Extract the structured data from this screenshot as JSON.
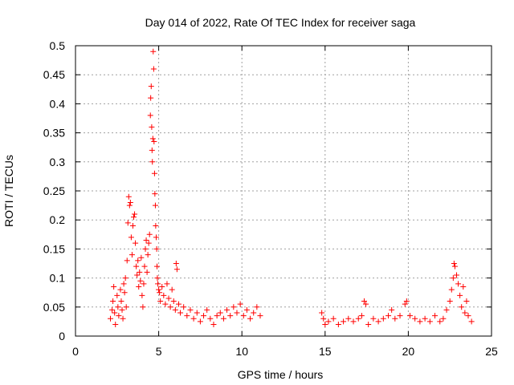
{
  "colors": {
    "series": "#ff0000",
    "grid": "#a0a0a0",
    "axis": "#000000",
    "background": "#ffffff"
  },
  "chart_data": {
    "type": "scatter",
    "title": "Day 014 of 2022, Rate Of TEC Index for receiver saga",
    "xlabel": "GPS time / hours",
    "ylabel": "ROTI / TECUs",
    "xlim": [
      0,
      25
    ],
    "ylim": [
      0,
      0.5
    ],
    "xticks": [
      0,
      5,
      10,
      15,
      20,
      25
    ],
    "xtick_labels": [
      "0",
      "5",
      "10",
      "15",
      "20",
      "25"
    ],
    "yticks": [
      0,
      0.05,
      0.1,
      0.15,
      0.2,
      0.25,
      0.3,
      0.35,
      0.4,
      0.45,
      0.5
    ],
    "ytick_labels": [
      "0",
      "0.05",
      "0.1",
      "0.15",
      "0.2",
      "0.25",
      "0.3",
      "0.35",
      "0.4",
      "0.45",
      "0.5"
    ],
    "grid": true,
    "marker": "plus",
    "series": [
      {
        "name": "ROTI",
        "color": "#ff0000",
        "points": [
          [
            2.1,
            0.03
          ],
          [
            2.2,
            0.045
          ],
          [
            2.25,
            0.06
          ],
          [
            2.3,
            0.085
          ],
          [
            2.35,
            0.04
          ],
          [
            2.4,
            0.02
          ],
          [
            2.5,
            0.07
          ],
          [
            2.55,
            0.05
          ],
          [
            2.6,
            0.035
          ],
          [
            2.7,
            0.08
          ],
          [
            2.75,
            0.06
          ],
          [
            2.8,
            0.045
          ],
          [
            2.85,
            0.03
          ],
          [
            2.9,
            0.09
          ],
          [
            2.95,
            0.075
          ],
          [
            3.0,
            0.1
          ],
          [
            3.05,
            0.05
          ],
          [
            3.1,
            0.13
          ],
          [
            3.15,
            0.195
          ],
          [
            3.2,
            0.24
          ],
          [
            3.25,
            0.225
          ],
          [
            3.3,
            0.23
          ],
          [
            3.35,
            0.17
          ],
          [
            3.4,
            0.14
          ],
          [
            3.45,
            0.19
          ],
          [
            3.5,
            0.205
          ],
          [
            3.55,
            0.21
          ],
          [
            3.6,
            0.16
          ],
          [
            3.65,
            0.12
          ],
          [
            3.7,
            0.105
          ],
          [
            3.75,
            0.13
          ],
          [
            3.8,
            0.085
          ],
          [
            3.85,
            0.11
          ],
          [
            3.9,
            0.095
          ],
          [
            3.95,
            0.135
          ],
          [
            4.0,
            0.07
          ],
          [
            4.05,
            0.05
          ],
          [
            4.1,
            0.09
          ],
          [
            4.15,
            0.12
          ],
          [
            4.2,
            0.15
          ],
          [
            4.25,
            0.165
          ],
          [
            4.3,
            0.11
          ],
          [
            4.35,
            0.14
          ],
          [
            4.4,
            0.16
          ],
          [
            4.45,
            0.175
          ],
          [
            4.5,
            0.38
          ],
          [
            4.52,
            0.41
          ],
          [
            4.55,
            0.43
          ],
          [
            4.58,
            0.36
          ],
          [
            4.6,
            0.32
          ],
          [
            4.62,
            0.3
          ],
          [
            4.65,
            0.34
          ],
          [
            4.67,
            0.49
          ],
          [
            4.7,
            0.46
          ],
          [
            4.72,
            0.335
          ],
          [
            4.75,
            0.28
          ],
          [
            4.77,
            0.245
          ],
          [
            4.8,
            0.225
          ],
          [
            4.82,
            0.19
          ],
          [
            4.85,
            0.17
          ],
          [
            4.88,
            0.15
          ],
          [
            4.9,
            0.12
          ],
          [
            4.92,
            0.1
          ],
          [
            4.95,
            0.09
          ],
          [
            5.0,
            0.08
          ],
          [
            5.05,
            0.075
          ],
          [
            5.1,
            0.06
          ],
          [
            5.2,
            0.085
          ],
          [
            5.3,
            0.07
          ],
          [
            5.4,
            0.055
          ],
          [
            5.5,
            0.09
          ],
          [
            5.6,
            0.065
          ],
          [
            5.7,
            0.05
          ],
          [
            5.8,
            0.08
          ],
          [
            5.9,
            0.06
          ],
          [
            6.0,
            0.045
          ],
          [
            6.05,
            0.125
          ],
          [
            6.1,
            0.115
          ],
          [
            6.2,
            0.055
          ],
          [
            6.3,
            0.04
          ],
          [
            6.5,
            0.05
          ],
          [
            6.7,
            0.035
          ],
          [
            6.9,
            0.045
          ],
          [
            7.1,
            0.03
          ],
          [
            7.3,
            0.04
          ],
          [
            7.5,
            0.025
          ],
          [
            7.7,
            0.035
          ],
          [
            7.9,
            0.045
          ],
          [
            8.1,
            0.03
          ],
          [
            8.3,
            0.02
          ],
          [
            8.5,
            0.035
          ],
          [
            8.7,
            0.04
          ],
          [
            8.9,
            0.03
          ],
          [
            9.1,
            0.045
          ],
          [
            9.3,
            0.035
          ],
          [
            9.5,
            0.05
          ],
          [
            9.7,
            0.04
          ],
          [
            9.9,
            0.055
          ],
          [
            10.1,
            0.035
          ],
          [
            10.3,
            0.045
          ],
          [
            10.5,
            0.03
          ],
          [
            10.7,
            0.04
          ],
          [
            10.9,
            0.05
          ],
          [
            11.1,
            0.035
          ],
          [
            14.8,
            0.04
          ],
          [
            14.9,
            0.03
          ],
          [
            15.0,
            0.02
          ],
          [
            15.2,
            0.025
          ],
          [
            15.5,
            0.03
          ],
          [
            15.8,
            0.02
          ],
          [
            16.1,
            0.025
          ],
          [
            16.4,
            0.03
          ],
          [
            16.7,
            0.025
          ],
          [
            17.0,
            0.03
          ],
          [
            17.2,
            0.035
          ],
          [
            17.35,
            0.06
          ],
          [
            17.45,
            0.055
          ],
          [
            17.6,
            0.02
          ],
          [
            17.9,
            0.03
          ],
          [
            18.2,
            0.025
          ],
          [
            18.5,
            0.03
          ],
          [
            18.8,
            0.035
          ],
          [
            19.0,
            0.045
          ],
          [
            19.2,
            0.03
          ],
          [
            19.5,
            0.035
          ],
          [
            19.8,
            0.055
          ],
          [
            19.9,
            0.06
          ],
          [
            20.1,
            0.035
          ],
          [
            20.4,
            0.03
          ],
          [
            20.7,
            0.025
          ],
          [
            21.0,
            0.03
          ],
          [
            21.3,
            0.025
          ],
          [
            21.6,
            0.035
          ],
          [
            21.9,
            0.025
          ],
          [
            22.1,
            0.03
          ],
          [
            22.3,
            0.045
          ],
          [
            22.5,
            0.06
          ],
          [
            22.6,
            0.08
          ],
          [
            22.7,
            0.1
          ],
          [
            22.75,
            0.125
          ],
          [
            22.8,
            0.12
          ],
          [
            22.9,
            0.105
          ],
          [
            23.0,
            0.09
          ],
          [
            23.1,
            0.07
          ],
          [
            23.2,
            0.05
          ],
          [
            23.3,
            0.085
          ],
          [
            23.4,
            0.04
          ],
          [
            23.5,
            0.06
          ],
          [
            23.6,
            0.035
          ],
          [
            23.8,
            0.025
          ]
        ]
      }
    ]
  }
}
